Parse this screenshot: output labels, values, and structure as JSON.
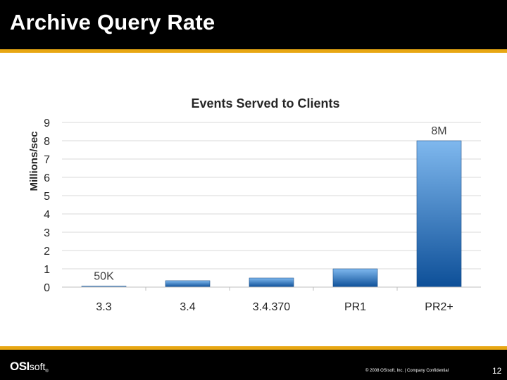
{
  "slide": {
    "title": "Archive Query Rate",
    "page_number": "12"
  },
  "footer": {
    "logo_strong": "OSI",
    "logo_light": "soft",
    "logo_mark": "®",
    "copyright": "© 2008 OSIsoft, Inc. | Company Confidential"
  },
  "colors": {
    "header_bg": "#000000",
    "accent_rule": "#e8a713",
    "bar_top": "#7fb8ee",
    "bar_bottom": "#0d4f98"
  },
  "chart_data": {
    "type": "bar",
    "title": "Events Served to Clients",
    "ylabel": "Millions/sec",
    "xlabel": "",
    "ylim": [
      0,
      9
    ],
    "yticks": [
      "0",
      "1",
      "2",
      "3",
      "4",
      "5",
      "6",
      "7",
      "8",
      "9"
    ],
    "categories": [
      "3.3",
      "3.4",
      "3.4.370",
      "PR1",
      "PR2+"
    ],
    "values": [
      0.05,
      0.35,
      0.5,
      1.0,
      8.0
    ],
    "data_labels": [
      "50K",
      "",
      "",
      "",
      "8M"
    ],
    "grid": true
  }
}
